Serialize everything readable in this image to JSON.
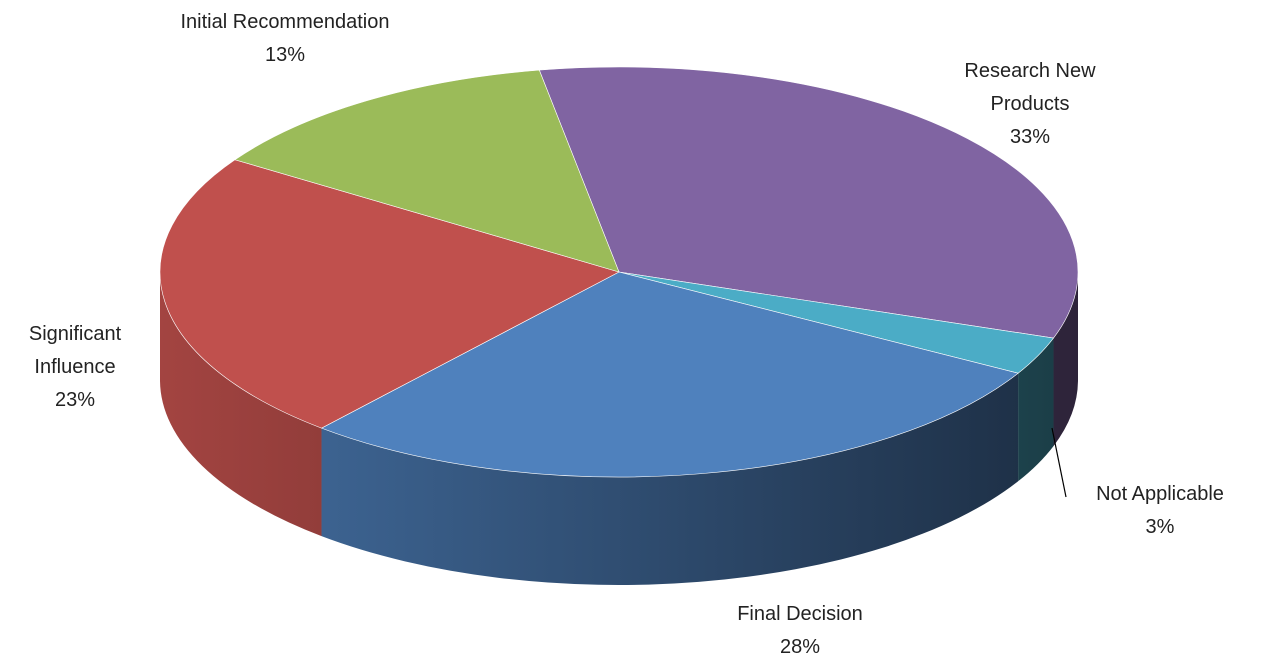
{
  "chart_data": {
    "type": "pie3d",
    "categories": [
      "Research New Products",
      "Not Applicable",
      "Final Decision",
      "Significant Influence",
      "Initial Recommendation"
    ],
    "values": [
      33,
      3,
      28,
      23,
      13
    ],
    "value_labels": [
      "33%",
      "3%",
      "28%",
      "23%",
      "13%"
    ],
    "colors": [
      "#8064a2",
      "#4bacc6",
      "#4f81bd",
      "#c0504d",
      "#9bbb59"
    ]
  }
}
